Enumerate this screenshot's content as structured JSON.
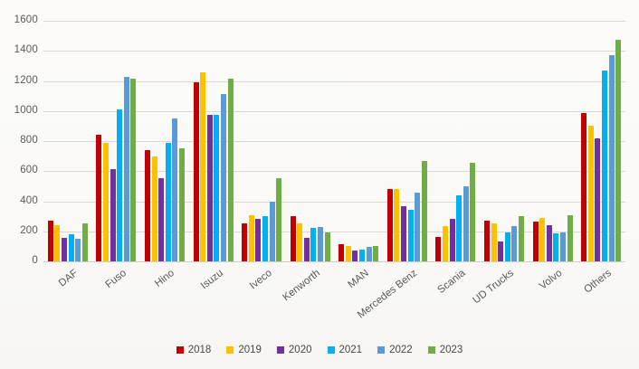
{
  "chart_data": {
    "type": "bar",
    "title": "",
    "categories": [
      "DAF",
      "Fuso",
      "Hino",
      "Isuzu",
      "Iveco",
      "Kenworth",
      "MAN",
      "Mercedes Benz",
      "Scania",
      "UD Trucks",
      "Volvo",
      "Others"
    ],
    "series": [
      {
        "name": "2018",
        "color": "#C00000",
        "values": [
          270,
          845,
          740,
          1190,
          255,
          300,
          115,
          480,
          160,
          270,
          265,
          985
        ]
      },
      {
        "name": "2019",
        "color": "#FFC000",
        "values": [
          240,
          790,
          700,
          1255,
          305,
          255,
          105,
          480,
          235,
          252,
          290,
          905
        ]
      },
      {
        "name": "2020",
        "color": "#7030A0",
        "values": [
          155,
          615,
          555,
          975,
          285,
          155,
          70,
          370,
          285,
          135,
          240,
          820
        ]
      },
      {
        "name": "2021",
        "color": "#00B0F0",
        "values": [
          180,
          1010,
          790,
          975,
          300,
          220,
          80,
          340,
          440,
          190,
          185,
          1270
        ]
      },
      {
        "name": "2022",
        "color": "#5B9BD5",
        "values": [
          148,
          1230,
          950,
          1110,
          395,
          228,
          95,
          455,
          500,
          235,
          190,
          1370
        ]
      },
      {
        "name": "2023",
        "color": "#70AD47",
        "values": [
          250,
          1215,
          750,
          1215,
          555,
          195,
          100,
          670,
          655,
          300,
          305,
          1475
        ]
      }
    ],
    "xlabel": "",
    "ylabel": "",
    "ylim": [
      0,
      1600
    ],
    "ytick_step": 200,
    "grid": true,
    "legend_position": "bottom",
    "axis_text_color": "#595959",
    "gridline_color": "#d9d9d9"
  }
}
